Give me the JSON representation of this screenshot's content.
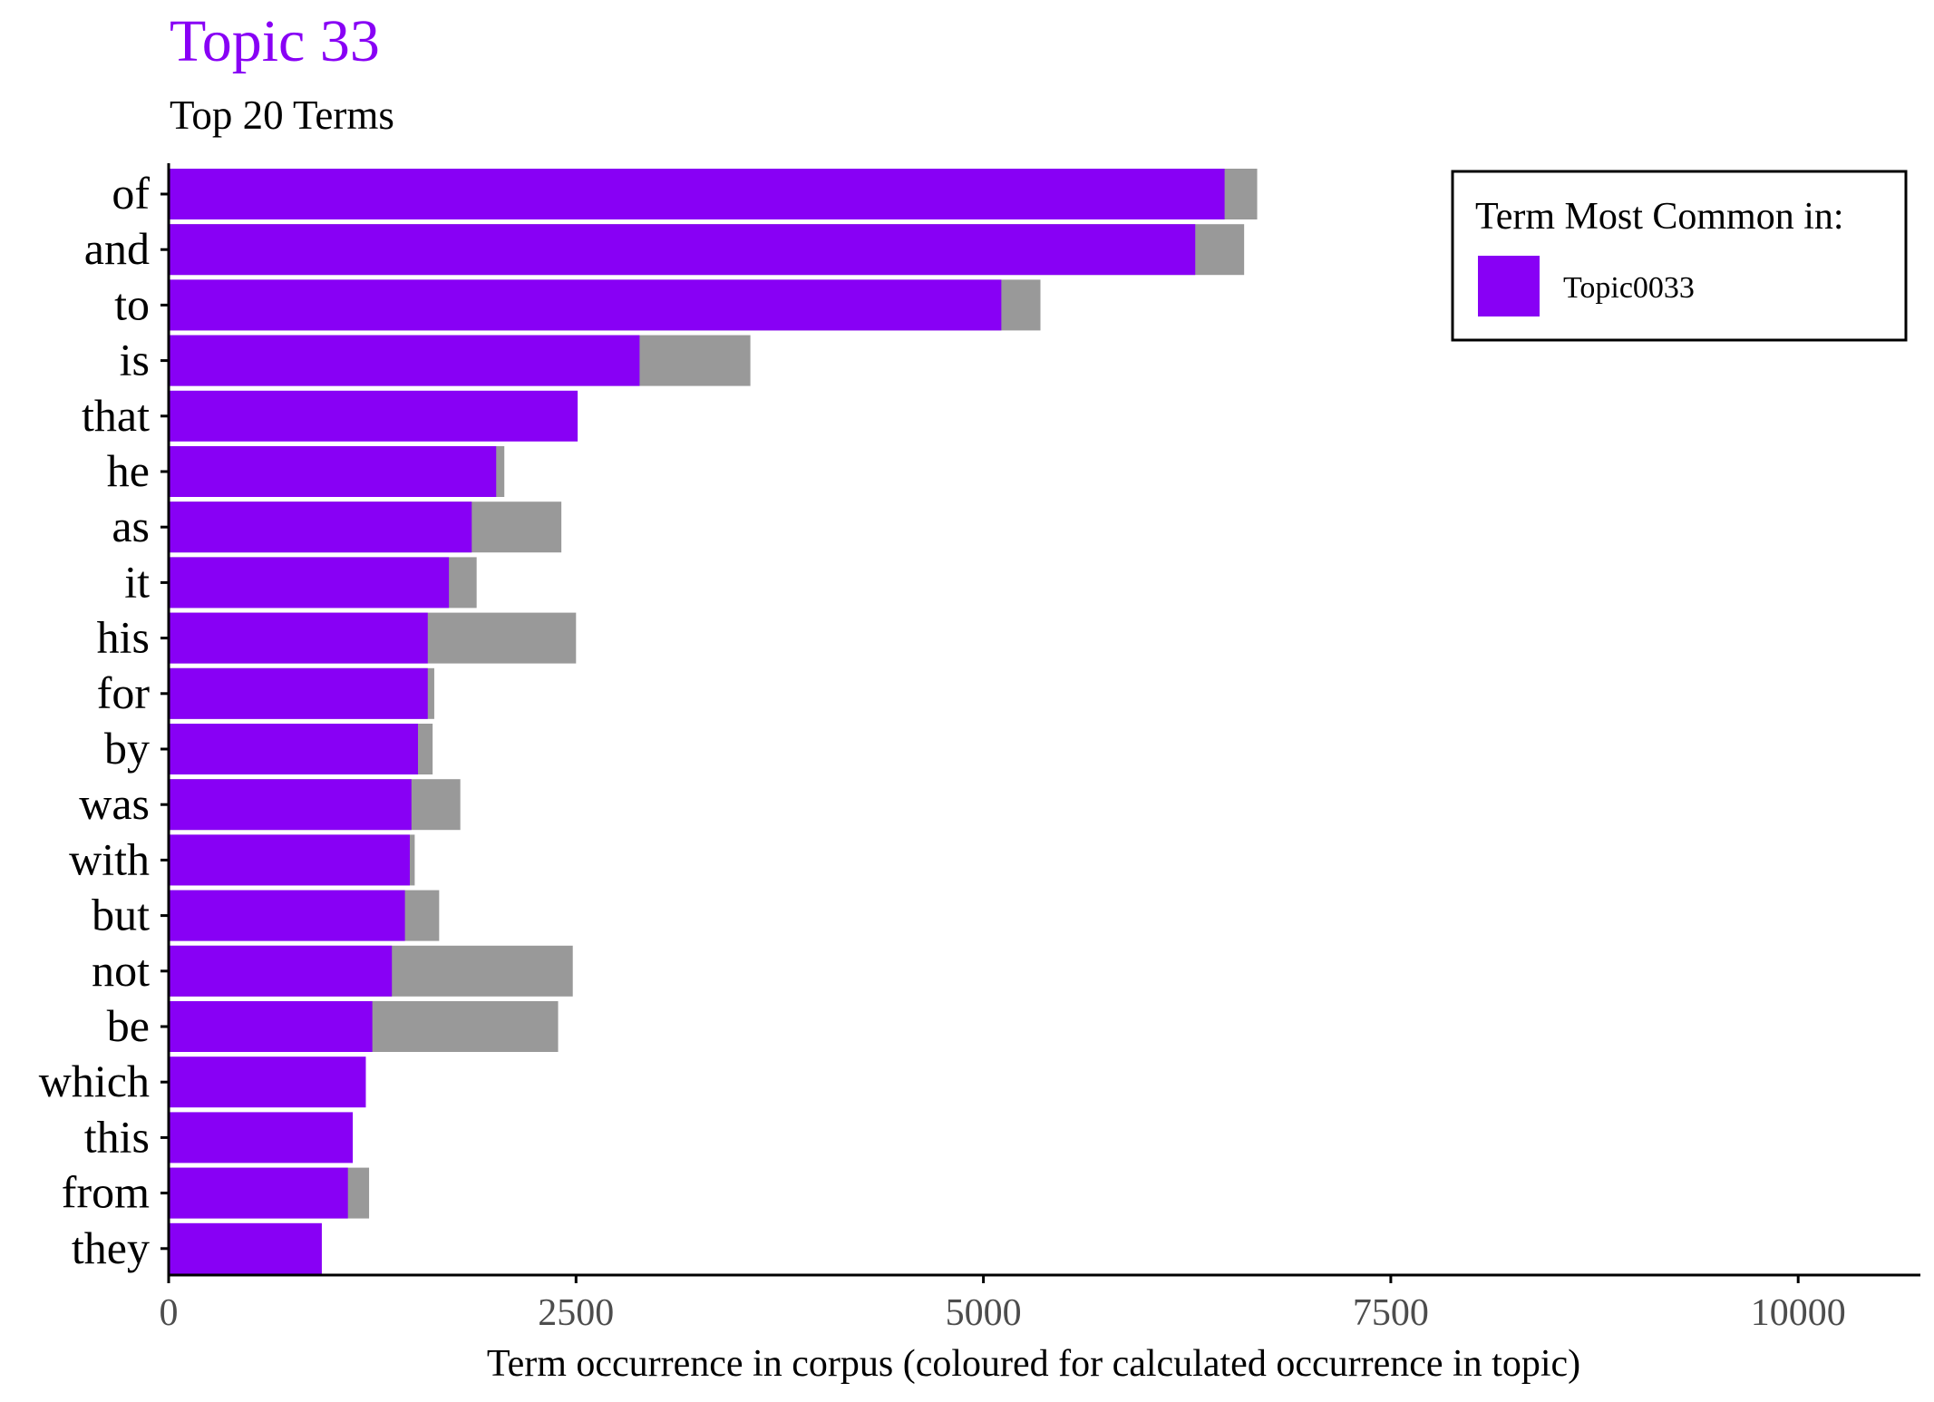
{
  "chart_data": {
    "type": "bar",
    "orientation": "horizontal",
    "stacked": true,
    "title": "Topic 33",
    "subtitle": "Top 20 Terms",
    "xlabel": "Term occurrence in corpus (coloured for calculated occurrence in topic)",
    "ylabel": "",
    "xlim": [
      0,
      10750
    ],
    "xticks": [
      0,
      2500,
      5000,
      7500,
      10000
    ],
    "xtick_labels": [
      "0",
      "2500",
      "5000",
      "7500",
      "10000"
    ],
    "grid": false,
    "legend": {
      "title": "Term Most Common in:",
      "placement": "top-right",
      "items": [
        {
          "label": "Topic0033",
          "color": "#8800F5"
        }
      ]
    },
    "colors": {
      "topic": "#8800F5",
      "corpus": "#999999",
      "title": "#8800F5"
    },
    "categories": [
      "of",
      "and",
      "to",
      "is",
      "that",
      "he",
      "as",
      "it",
      "his",
      "for",
      "by",
      "was",
      "with",
      "but",
      "not",
      "be",
      "which",
      "this",
      "from",
      "they"
    ],
    "topic_values": [
      6480,
      6300,
      5110,
      2890,
      2510,
      2010,
      1860,
      1720,
      1590,
      1590,
      1530,
      1490,
      1480,
      1450,
      1370,
      1250,
      1210,
      1130,
      1100,
      940
    ],
    "corpus_values": [
      6680,
      6600,
      5350,
      3570,
      2510,
      2060,
      2410,
      1890,
      2500,
      1630,
      1620,
      1790,
      1510,
      1660,
      2480,
      2390,
      1210,
      1130,
      1230,
      940
    ]
  }
}
